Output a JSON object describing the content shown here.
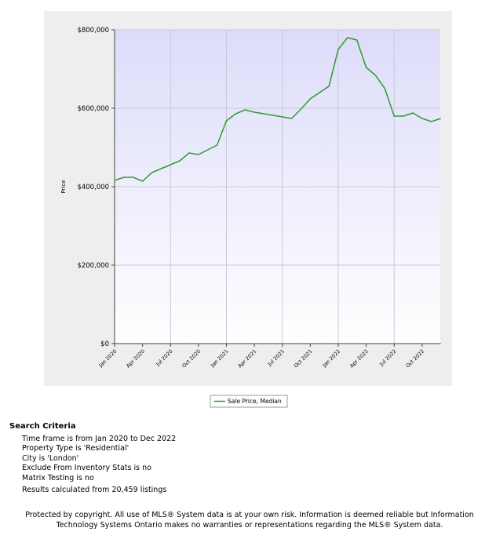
{
  "chart_data": {
    "type": "line",
    "y_label": "Price",
    "categories": [
      "Jan 2020",
      null,
      null,
      "Apr 2020",
      null,
      null,
      "Jul 2020",
      null,
      null,
      "Oct 2020",
      null,
      null,
      "Jan 2021",
      null,
      null,
      "Apr 2021",
      null,
      null,
      "Jul 2021",
      null,
      null,
      "Oct 2021",
      null,
      null,
      "Jan 2022",
      null,
      null,
      "Apr 2022",
      null,
      null,
      "Jul 2022",
      null,
      null,
      "Oct 2022",
      null,
      null
    ],
    "series": [
      {
        "name": "Sale Price, Median",
        "color": "#2e9b2e",
        "values": [
          416000,
          424000,
          424000,
          414000,
          436000,
          446000,
          456000,
          466000,
          486000,
          482000,
          494000,
          506000,
          568000,
          586000,
          596000,
          590000,
          586000,
          582000,
          578000,
          574000,
          598000,
          624000,
          640000,
          656000,
          750000,
          780000,
          774000,
          704000,
          684000,
          650000,
          580000,
          580000,
          588000,
          574000,
          566000,
          574000
        ]
      }
    ],
    "ylim": [
      0,
      800000
    ],
    "yticks": [
      {
        "value": 0,
        "label": "$0"
      },
      {
        "value": 200000,
        "label": "$200,000"
      },
      {
        "value": 400000,
        "label": "$400,000"
      },
      {
        "value": 600000,
        "label": "$600,000"
      },
      {
        "value": 800000,
        "label": "$800,000"
      }
    ],
    "grid": true
  },
  "search_criteria": {
    "title": "Search Criteria",
    "items": [
      "Time frame is from Jan 2020 to Dec 2022",
      "Property Type is 'Residential'",
      "City is 'London'",
      "Exclude From Inventory Stats is no",
      "Matrix Testing is no",
      "Results calculated from 20,459 listings"
    ]
  },
  "footer": "Protected by copyright. All use of MLS® System data is at your own risk. Information is deemed reliable but Information Technology Systems Ontario makes no warranties or representations regarding the MLS® System data."
}
